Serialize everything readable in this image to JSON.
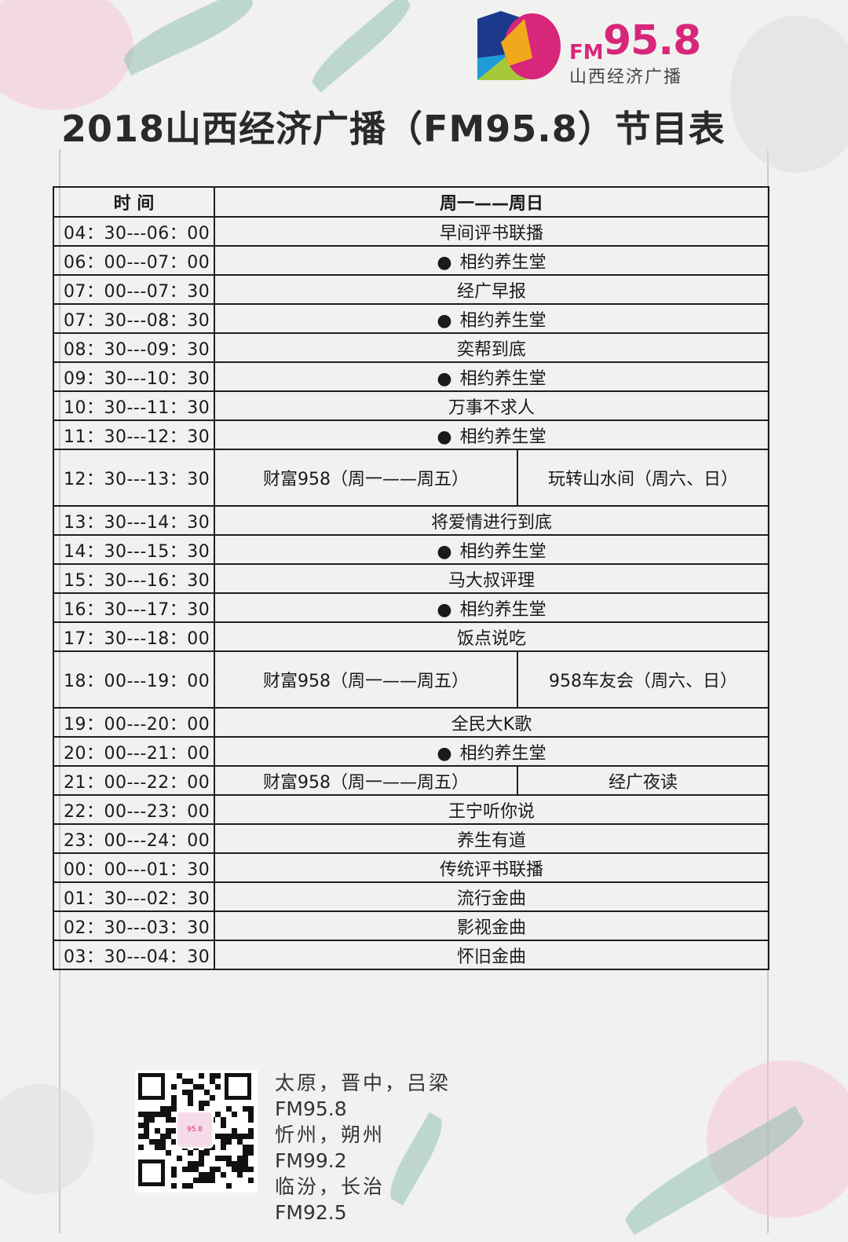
{
  "logo": {
    "fm": "FM",
    "number": "95.8",
    "name": "山西经济广播",
    "colors": [
      "#1b3a8c",
      "#d8267a",
      "#f2a81d",
      "#a5c93a",
      "#1e9bd7"
    ]
  },
  "title": "2018山西经济广播（FM95.8）节目表",
  "table": {
    "headers": {
      "time": "时  间",
      "program": "周一——周日"
    },
    "rows": [
      {
        "time": "04：30---06：00",
        "program": "早间评书联播"
      },
      {
        "time": "06：00---07：00",
        "program": "相约养生堂",
        "bullet": true
      },
      {
        "time": "07：00---07：30",
        "program": "经广早报"
      },
      {
        "time": "07：30---08：30",
        "program": "相约养生堂",
        "bullet": true
      },
      {
        "time": "08：30---09：30",
        "program": "奕帮到底"
      },
      {
        "time": "09：30---10：30",
        "program": "相约养生堂",
        "bullet": true
      },
      {
        "time": "10：30---11：30",
        "program": "万事不求人"
      },
      {
        "time": "11：30---12：30",
        "program": "相约养生堂",
        "bullet": true
      },
      {
        "time": "12：30---13：30",
        "left": "财富958（周一——周五）",
        "right": "玩转山水间（周六、日）",
        "tall": true
      },
      {
        "time": "13：30---14：30",
        "program": "将爱情进行到底"
      },
      {
        "time": "14：30---15：30",
        "program": "相约养生堂",
        "bullet": true
      },
      {
        "time": "15：30---16：30",
        "program": "马大叔评理"
      },
      {
        "time": "16：30---17：30",
        "program": "相约养生堂",
        "bullet": true
      },
      {
        "time": "17：30---18：00",
        "program": "饭点说吃"
      },
      {
        "time": "18：00---19：00",
        "left": "财富958（周一——周五）",
        "right": "958车友会（周六、日）",
        "tall": true
      },
      {
        "time": "19：00---20：00",
        "program": "全民大K歌"
      },
      {
        "time": "20：00---21：00",
        "program": "相约养生堂",
        "bullet": true
      },
      {
        "time": "21：00---22：00",
        "left": "财富958（周一——周五）",
        "right": "经广夜读"
      },
      {
        "time": "22：00---23：00",
        "program": "王宁听你说"
      },
      {
        "time": "23：00---24：00",
        "program": "养生有道"
      },
      {
        "time": "00：00---01：30",
        "program": "传统评书联播"
      },
      {
        "time": "01：30---02：30",
        "program": "流行金曲"
      },
      {
        "time": "02：30---03：30",
        "program": "影视金曲"
      },
      {
        "time": "03：30---04：30",
        "program": "怀旧金曲"
      }
    ]
  },
  "footer": {
    "qr_label": "95.8",
    "coverage": [
      {
        "cities": "太原，晋中，吕梁",
        "freq": "FM95.8"
      },
      {
        "cities": "忻州，朔州",
        "freq": "FM99.2"
      },
      {
        "cities": "临汾，长治",
        "freq": "FM92.5"
      }
    ]
  }
}
